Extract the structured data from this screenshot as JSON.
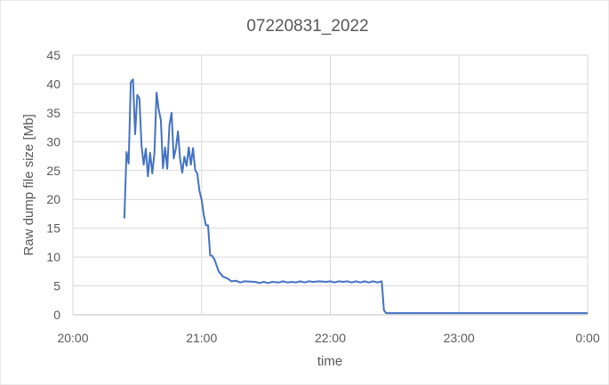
{
  "chart_data": {
    "type": "line",
    "title": "07220831_2022",
    "xlabel": "time",
    "ylabel": "Raw dump file size [Mb]",
    "xlim": [
      "20:00",
      "0:00"
    ],
    "ylim": [
      0,
      45
    ],
    "xticks": [
      "20:00",
      "21:00",
      "22:00",
      "23:00",
      "0:00"
    ],
    "yticks": [
      0,
      5,
      10,
      15,
      20,
      25,
      30,
      35,
      40,
      45
    ],
    "grid": true,
    "legend": "none",
    "series": [
      {
        "color": "#4472C4",
        "points": [
          [
            "20:24",
            16.7
          ],
          [
            "20:25",
            28.2
          ],
          [
            "20:26",
            26.2
          ],
          [
            "20:27",
            40.3
          ],
          [
            "20:28",
            40.8
          ],
          [
            "20:29",
            31.3
          ],
          [
            "20:30",
            38.1
          ],
          [
            "20:31",
            37.5
          ],
          [
            "20:32",
            29.3
          ],
          [
            "20:33",
            26.0
          ],
          [
            "20:34",
            28.8
          ],
          [
            "20:35",
            24.0
          ],
          [
            "20:36",
            28.1
          ],
          [
            "20:37",
            24.5
          ],
          [
            "20:38",
            28.0
          ],
          [
            "20:39",
            38.5
          ],
          [
            "20:40",
            35.6
          ],
          [
            "20:41",
            33.8
          ],
          [
            "20:42",
            25.4
          ],
          [
            "20:43",
            29.0
          ],
          [
            "20:44",
            25.3
          ],
          [
            "20:45",
            32.9
          ],
          [
            "20:46",
            35.0
          ],
          [
            "20:47",
            27.1
          ],
          [
            "20:48",
            28.8
          ],
          [
            "20:49",
            31.8
          ],
          [
            "20:50",
            27.0
          ],
          [
            "20:51",
            24.6
          ],
          [
            "20:52",
            27.4
          ],
          [
            "20:53",
            25.8
          ],
          [
            "20:54",
            29.0
          ],
          [
            "20:55",
            26.0
          ],
          [
            "20:56",
            28.9
          ],
          [
            "20:57",
            25.1
          ],
          [
            "20:58",
            24.5
          ],
          [
            "20:59",
            21.5
          ],
          [
            "21:00",
            19.9
          ],
          [
            "21:01",
            17.3
          ],
          [
            "21:02",
            15.5
          ],
          [
            "21:03",
            15.5
          ],
          [
            "21:04",
            10.3
          ],
          [
            "21:05",
            10.2
          ],
          [
            "21:06",
            9.6
          ],
          [
            "21:08",
            7.5
          ],
          [
            "21:10",
            6.6
          ],
          [
            "21:12",
            6.3
          ],
          [
            "21:14",
            5.8
          ],
          [
            "21:16",
            5.9
          ],
          [
            "21:18",
            5.6
          ],
          [
            "21:20",
            5.8
          ],
          [
            "21:25",
            5.7
          ],
          [
            "21:27",
            5.5
          ],
          [
            "21:29",
            5.7
          ],
          [
            "21:31",
            5.5
          ],
          [
            "21:33",
            5.7
          ],
          [
            "21:36",
            5.6
          ],
          [
            "21:38",
            5.8
          ],
          [
            "21:40",
            5.6
          ],
          [
            "21:42",
            5.7
          ],
          [
            "21:44",
            5.6
          ],
          [
            "21:46",
            5.8
          ],
          [
            "21:48",
            5.6
          ],
          [
            "21:50",
            5.8
          ],
          [
            "21:52",
            5.7
          ],
          [
            "21:55",
            5.8
          ],
          [
            "21:58",
            5.7
          ],
          [
            "22:00",
            5.8
          ],
          [
            "22:02",
            5.6
          ],
          [
            "22:04",
            5.8
          ],
          [
            "22:06",
            5.7
          ],
          [
            "22:08",
            5.8
          ],
          [
            "22:10",
            5.6
          ],
          [
            "22:12",
            5.8
          ],
          [
            "22:14",
            5.6
          ],
          [
            "22:16",
            5.8
          ],
          [
            "22:18",
            5.6
          ],
          [
            "22:20",
            5.8
          ],
          [
            "22:22",
            5.6
          ],
          [
            "22:24",
            5.8
          ],
          [
            "22:25",
            0.8
          ],
          [
            "22:26",
            0.3
          ],
          [
            "22:30",
            0.3
          ],
          [
            "23:00",
            0.3
          ],
          [
            "23:30",
            0.3
          ],
          [
            "0:00",
            0.3
          ]
        ]
      }
    ]
  }
}
